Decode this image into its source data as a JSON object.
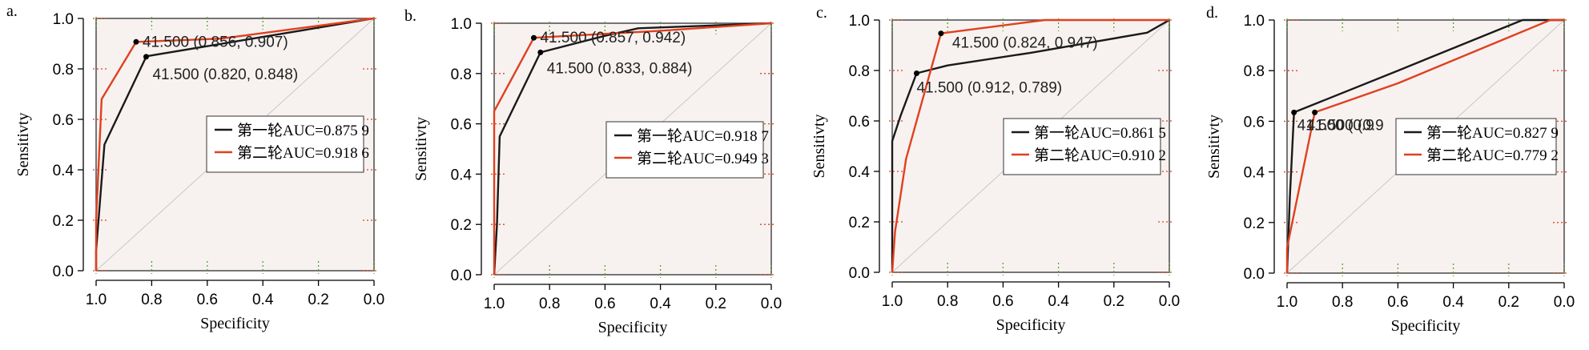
{
  "chart_data": [
    {
      "type": "line",
      "panel_label": "a.",
      "xlabel": "Specificity",
      "ylabel": "Sensitivty",
      "xlim": [
        1.0,
        0.0
      ],
      "ylim": [
        0.0,
        1.0
      ],
      "xticks": [
        "1.0",
        "0.8",
        "0.6",
        "0.4",
        "0.2",
        "0.0"
      ],
      "yticks": [
        "0.0",
        "0.2",
        "0.4",
        "0.6",
        "0.8",
        "1.0"
      ],
      "diagonal": true,
      "series": [
        {
          "name": "第一轮AUC=0.875 9",
          "color": "#1a1a1a",
          "points": [
            [
              1.0,
              0.0
            ],
            [
              1.0,
              0.08
            ],
            [
              0.97,
              0.5
            ],
            [
              0.82,
              0.848
            ],
            [
              0.82,
              0.85
            ],
            [
              0.0,
              1.0
            ]
          ]
        },
        {
          "name": "第二轮AUC=0.918 6",
          "color": "#e0401f",
          "points": [
            [
              1.0,
              0.0
            ],
            [
              1.0,
              0.2
            ],
            [
              0.98,
              0.68
            ],
            [
              0.856,
              0.907
            ],
            [
              0.55,
              0.92
            ],
            [
              0.0,
              1.0
            ]
          ]
        }
      ],
      "annotations": [
        {
          "text": "41.500 (0.856, 0.907)",
          "x": 0.856,
          "y": 0.907,
          "color": "#e0401f"
        },
        {
          "text": "41.500 (0.820, 0.848)",
          "x": 0.82,
          "y": 0.848,
          "color": "#1a1a1a"
        }
      ],
      "legend": {
        "placement": "center-right"
      }
    },
    {
      "type": "line",
      "panel_label": "b.",
      "xlabel": "Specificity",
      "ylabel": "Sensitivty",
      "xlim": [
        1.0,
        0.0
      ],
      "ylim": [
        0.0,
        1.0
      ],
      "xticks": [
        "1.0",
        "0.8",
        "0.6",
        "0.4",
        "0.2",
        "0.0"
      ],
      "yticks": [
        "0.0",
        "0.2",
        "0.4",
        "0.6",
        "0.8",
        "1.0"
      ],
      "diagonal": true,
      "series": [
        {
          "name": "第一轮AUC=0.918 7",
          "color": "#1a1a1a",
          "points": [
            [
              1.0,
              0.0
            ],
            [
              0.99,
              0.2
            ],
            [
              0.98,
              0.55
            ],
            [
              0.833,
              0.884
            ],
            [
              0.6,
              0.95
            ],
            [
              0.48,
              0.98
            ],
            [
              0.0,
              1.0
            ]
          ]
        },
        {
          "name": "第二轮AUC=0.949 3",
          "color": "#e0401f",
          "points": [
            [
              1.0,
              0.0
            ],
            [
              1.0,
              0.65
            ],
            [
              0.857,
              0.942
            ],
            [
              0.4,
              0.97
            ],
            [
              0.0,
              1.0
            ]
          ]
        }
      ],
      "annotations": [
        {
          "text": "41.500 (0.857, 0.942)",
          "x": 0.857,
          "y": 0.942,
          "color": "#e0401f"
        },
        {
          "text": "41.500 (0.833, 0.884)",
          "x": 0.833,
          "y": 0.884,
          "color": "#1a1a1a"
        }
      ],
      "legend": {
        "placement": "center-right"
      }
    },
    {
      "type": "line",
      "panel_label": "c.",
      "xlabel": "Specificity",
      "ylabel": "Sensitivty",
      "xlim": [
        1.0,
        0.0
      ],
      "ylim": [
        0.0,
        1.0
      ],
      "xticks": [
        "1.0",
        "0.8",
        "0.6",
        "0.4",
        "0.2",
        "0.0"
      ],
      "yticks": [
        "0.0",
        "0.2",
        "0.4",
        "0.6",
        "0.8",
        "1.0"
      ],
      "diagonal": true,
      "series": [
        {
          "name": "第一轮AUC=0.861 5",
          "color": "#1a1a1a",
          "points": [
            [
              1.0,
              0.0
            ],
            [
              1.0,
              0.52
            ],
            [
              0.97,
              0.62
            ],
            [
              0.912,
              0.789
            ],
            [
              0.8,
              0.82
            ],
            [
              0.5,
              0.87
            ],
            [
              0.08,
              0.95
            ],
            [
              0.0,
              1.0
            ]
          ]
        },
        {
          "name": "第二轮AUC=0.910 2",
          "color": "#e0401f",
          "points": [
            [
              1.0,
              0.0
            ],
            [
              0.99,
              0.16
            ],
            [
              0.95,
              0.45
            ],
            [
              0.824,
              0.947
            ],
            [
              0.45,
              1.0
            ],
            [
              0.0,
              1.0
            ]
          ]
        }
      ],
      "annotations": [
        {
          "text": "41.500 (0.824, 0.947)",
          "x": 0.824,
          "y": 0.947,
          "color": "#e0401f"
        },
        {
          "text": "41.500 (0.912, 0.789)",
          "x": 0.912,
          "y": 0.789,
          "color": "#1a1a1a"
        }
      ],
      "legend": {
        "placement": "center-right"
      }
    },
    {
      "type": "line",
      "panel_label": "d.",
      "xlabel": "Specificity",
      "ylabel": "Sensitivty",
      "xlim": [
        1.0,
        0.0
      ],
      "ylim": [
        0.0,
        1.0
      ],
      "xticks": [
        "1.0",
        "0.8",
        "0.6",
        "0.4",
        "0.2",
        "0.0"
      ],
      "yticks": [
        "0.0",
        "0.2",
        "0.4",
        "0.6",
        "0.8",
        "1.0"
      ],
      "diagonal": true,
      "series": [
        {
          "name": "第一轮AUC=0.827 9",
          "color": "#1a1a1a",
          "points": [
            [
              1.0,
              0.0
            ],
            [
              0.99,
              0.3
            ],
            [
              0.975,
              0.635
            ],
            [
              0.6,
              0.8
            ],
            [
              0.15,
              1.0
            ],
            [
              0.0,
              1.0
            ]
          ]
        },
        {
          "name": "第二轮AUC=0.779 2",
          "color": "#e0401f",
          "points": [
            [
              1.0,
              0.0
            ],
            [
              1.0,
              0.1
            ],
            [
              0.9,
              0.635
            ],
            [
              0.6,
              0.75
            ],
            [
              0.05,
              1.0
            ],
            [
              0.0,
              1.0
            ]
          ]
        }
      ],
      "annotations": [
        {
          "text": "41.500 (0.9",
          "x": 0.975,
          "y": 0.635,
          "color": "#1a1a1a"
        },
        {
          "text": "41.500 (0.9",
          "x": 0.9,
          "y": 0.635,
          "color": "#e0401f"
        }
      ],
      "legend": {
        "placement": "center-right"
      }
    }
  ]
}
